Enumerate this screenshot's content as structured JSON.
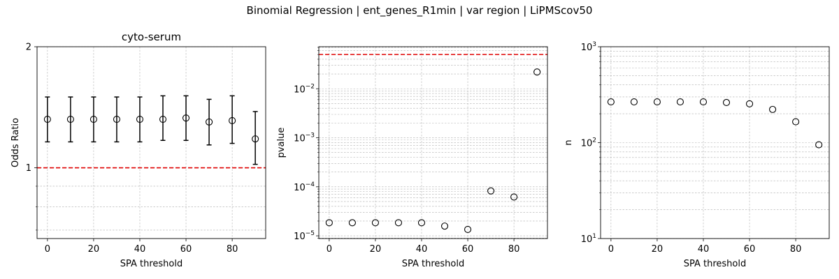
{
  "figure": {
    "title": "Binomial Regression | ent_genes_R1min | var region | LiPMScov50"
  },
  "chart_data": [
    {
      "type": "scatter",
      "subtitle": "cyto-serum",
      "xlabel": "SPA threshold",
      "ylabel": "Odds Ratio",
      "xlim": [
        -4.5,
        94.5
      ],
      "ylim": [
        0.667,
        2.0
      ],
      "yscale": "log",
      "x": [
        0,
        10,
        20,
        30,
        40,
        50,
        60,
        70,
        80,
        90
      ],
      "y": [
        1.32,
        1.32,
        1.32,
        1.32,
        1.32,
        1.32,
        1.33,
        1.3,
        1.31,
        1.18
      ],
      "err_low": [
        1.16,
        1.16,
        1.16,
        1.16,
        1.16,
        1.17,
        1.17,
        1.14,
        1.15,
        1.02
      ],
      "err_high": [
        1.5,
        1.5,
        1.5,
        1.5,
        1.5,
        1.51,
        1.51,
        1.48,
        1.51,
        1.38
      ],
      "reference_line": {
        "y": 1,
        "color": "#e00000",
        "style": "dashed"
      },
      "xticks": [
        "0",
        "20",
        "40",
        "60",
        "80"
      ],
      "yticks": [
        "1",
        "2"
      ],
      "marker": "open-circle",
      "grid": true
    },
    {
      "type": "scatter",
      "subtitle": "",
      "xlabel": "SPA threshold",
      "ylabel": "pvalue",
      "xlim": [
        -4.5,
        94.5
      ],
      "ylim": [
        8.8e-06,
        0.072
      ],
      "yscale": "log",
      "x": [
        0,
        10,
        20,
        30,
        40,
        50,
        60,
        70,
        80,
        90
      ],
      "y": [
        1.85e-05,
        1.85e-05,
        1.85e-05,
        1.85e-05,
        1.85e-05,
        1.58e-05,
        1.35e-05,
        8.25e-05,
        6.2e-05,
        0.022
      ],
      "reference_line": {
        "y": 0.05,
        "color": "#e00000",
        "style": "dashed"
      },
      "xticks": [
        "0",
        "20",
        "40",
        "60",
        "80"
      ],
      "yticks": [
        {
          "base": "10",
          "exp": "−5"
        },
        {
          "base": "10",
          "exp": "−4"
        },
        {
          "base": "10",
          "exp": "−3"
        },
        {
          "base": "10",
          "exp": "−2"
        }
      ],
      "marker": "open-circle",
      "grid": true
    },
    {
      "type": "scatter",
      "subtitle": "",
      "xlabel": "SPA threshold",
      "ylabel": "n",
      "xlim": [
        -4.5,
        94.5
      ],
      "ylim": [
        10,
        1000
      ],
      "yscale": "log",
      "x": [
        0,
        10,
        20,
        30,
        40,
        50,
        60,
        70,
        80,
        90
      ],
      "y": [
        266,
        266,
        266,
        266,
        266,
        262,
        254,
        222,
        165,
        95
      ],
      "xticks": [
        "0",
        "20",
        "40",
        "60",
        "80"
      ],
      "yticks": [
        {
          "base": "10",
          "exp": "1"
        },
        {
          "base": "10",
          "exp": "2"
        },
        {
          "base": "10",
          "exp": "3"
        }
      ],
      "marker": "open-circle",
      "grid": true
    }
  ]
}
